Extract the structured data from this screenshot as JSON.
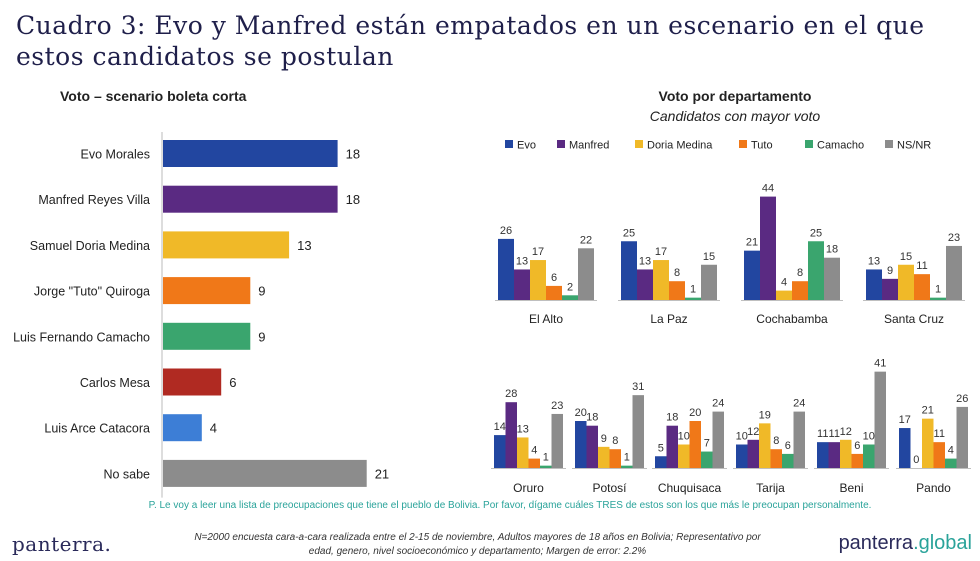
{
  "title_line1": "Cuadro 3: Evo y Manfred están empatados en un escenario en el que",
  "title_line2": "estos candidatos se postulan",
  "left_title": "Voto – scenario boleta corta",
  "right_title": "Voto por departamento",
  "right_subtitle": "Candidatos con mayor voto",
  "question": "P. Le voy a leer una lista de preocupaciones que tiene el pueblo de Bolivia. Por favor, dígame cuáles TRES de estos son los que más le preocupan personalmente.",
  "footnote_line1": "N=2000 encuesta cara-a-cara realizada entre el 2-15 de noviembre, Adultos mayores de 18 años en Bolivia; Representativo por",
  "footnote_line2": "edad, genero, nivel socioeconómico y departamento; Margen de error: 2.2%",
  "logo_left": "panterra.",
  "logo_right_name": "panterra",
  "logo_right_tld": ".global",
  "colors": {
    "evo": "#2246a0",
    "manfred": "#5a2a82",
    "doria": "#f0b928",
    "tuto": "#f07818",
    "camacho": "#3aa56e",
    "mesa": "#b02a22",
    "arce": "#3d7ed6",
    "nsnr": "#8c8c8c"
  },
  "chart_data": [
    {
      "type": "bar",
      "orientation": "horizontal",
      "title": "Voto – scenario boleta corta",
      "categories": [
        "Evo Morales",
        "Manfred Reyes Villa",
        "Samuel Doria Medina",
        "Jorge \"Tuto\" Quiroga",
        "Luis Fernando Camacho",
        "Carlos Mesa",
        "Luis Arce Catacora",
        "No sabe"
      ],
      "values": [
        18,
        18,
        13,
        9,
        9,
        6,
        4,
        21
      ],
      "colors": [
        "#2246a0",
        "#5a2a82",
        "#f0b928",
        "#f07818",
        "#3aa56e",
        "#b02a22",
        "#3d7ed6",
        "#8c8c8c"
      ]
    },
    {
      "type": "bar",
      "title": "Voto por departamento",
      "subtitle": "Candidatos con mayor voto",
      "legend_position": "top",
      "categories": [
        "El Alto",
        "La Paz",
        "Cochabamba",
        "Santa Cruz",
        "Oruro",
        "Potosí",
        "Chuquisaca",
        "Tarija",
        "Beni",
        "Pando"
      ],
      "series": [
        {
          "name": "Evo",
          "color": "#2246a0",
          "values": [
            26,
            25,
            21,
            13,
            14,
            20,
            5,
            10,
            11,
            17
          ]
        },
        {
          "name": "Manfred",
          "color": "#5a2a82",
          "values": [
            13,
            13,
            44,
            9,
            28,
            18,
            18,
            12,
            11,
            0
          ]
        },
        {
          "name": "Doria Medina",
          "color": "#f0b928",
          "values": [
            17,
            17,
            4,
            15,
            13,
            9,
            10,
            19,
            12,
            21
          ]
        },
        {
          "name": "Tuto",
          "color": "#f07818",
          "values": [
            6,
            8,
            8,
            11,
            4,
            8,
            20,
            8,
            6,
            11
          ]
        },
        {
          "name": "Camacho",
          "color": "#3aa56e",
          "values": [
            2,
            1,
            25,
            1,
            1,
            1,
            7,
            6,
            10,
            4
          ]
        },
        {
          "name": "NS/NR",
          "color": "#8c8c8c",
          "values": [
            22,
            15,
            18,
            23,
            23,
            31,
            24,
            24,
            41,
            26
          ]
        }
      ]
    }
  ]
}
